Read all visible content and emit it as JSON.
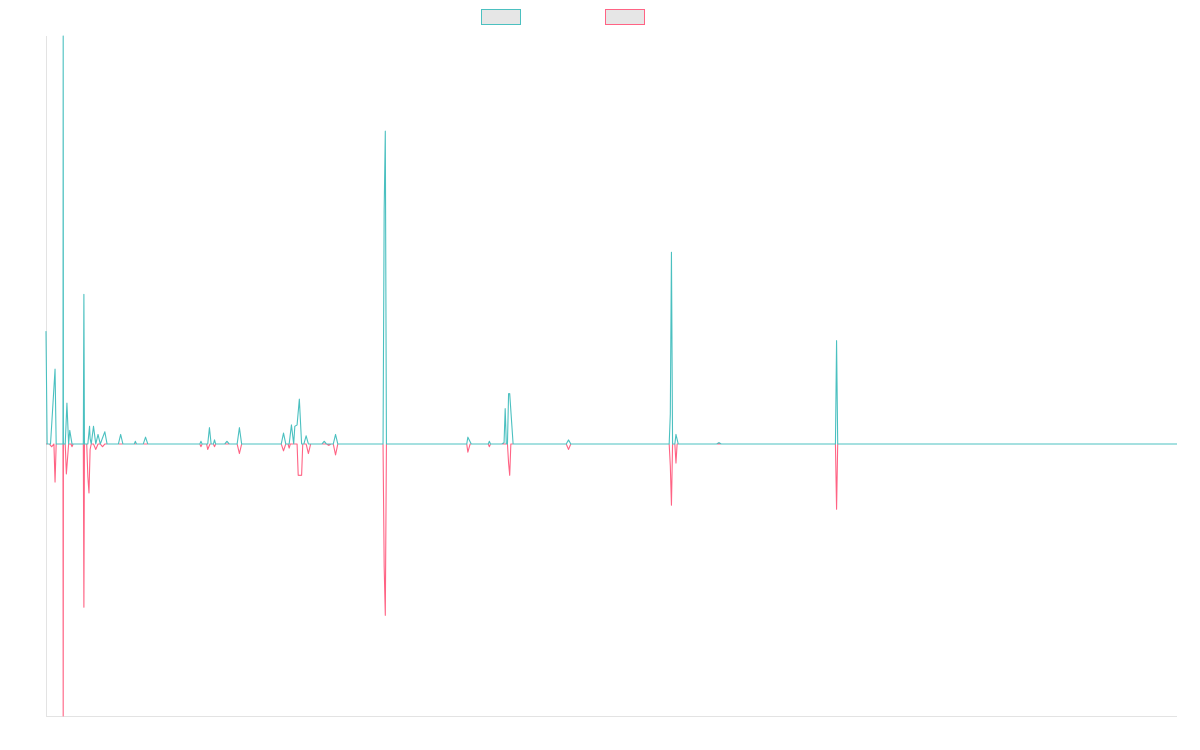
{
  "chart_data": {
    "type": "line",
    "title": "",
    "xlabel": "",
    "ylabel": "",
    "xlim": [
      0,
      1000
    ],
    "ylim": [
      -100,
      150
    ],
    "grid": false,
    "legend": "top-center",
    "series": [
      {
        "name": "",
        "color": "#4bc0c0",
        "points": [
          [
            0,
            41.5
          ],
          [
            1,
            0
          ],
          [
            4,
            0
          ],
          [
            8,
            27.5
          ],
          [
            9,
            0
          ],
          [
            15,
            0
          ],
          [
            15.2,
            150
          ],
          [
            15.4,
            0
          ],
          [
            17,
            0
          ],
          [
            18.5,
            15
          ],
          [
            20,
            0
          ],
          [
            21,
            5
          ],
          [
            23,
            0
          ],
          [
            33,
            0
          ],
          [
            33.5,
            55
          ],
          [
            34,
            0
          ],
          [
            37,
            0
          ],
          [
            38.5,
            6.5
          ],
          [
            39,
            2
          ],
          [
            40,
            0
          ],
          [
            42,
            6.5
          ],
          [
            44,
            0
          ],
          [
            46,
            3.5
          ],
          [
            48,
            0
          ],
          [
            52,
            4.5
          ],
          [
            54,
            0
          ],
          [
            64,
            0
          ],
          [
            66,
            3.5
          ],
          [
            68,
            0
          ],
          [
            78,
            0
          ],
          [
            79,
            1
          ],
          [
            80,
            0
          ],
          [
            86,
            0
          ],
          [
            88,
            2.5
          ],
          [
            90,
            0
          ],
          [
            136,
            0
          ],
          [
            137,
            1
          ],
          [
            138,
            0
          ],
          [
            143,
            0
          ],
          [
            144.5,
            6
          ],
          [
            146,
            0
          ],
          [
            148,
            0
          ],
          [
            149,
            1.5
          ],
          [
            150,
            0
          ],
          [
            158,
            0
          ],
          [
            160,
            1
          ],
          [
            162,
            0
          ],
          [
            169,
            0
          ],
          [
            171,
            6
          ],
          [
            173,
            0
          ],
          [
            208,
            0
          ],
          [
            210,
            4
          ],
          [
            212,
            0
          ],
          [
            215,
            0
          ],
          [
            217,
            7
          ],
          [
            219,
            0
          ],
          [
            220,
            6.5
          ],
          [
            222,
            7
          ],
          [
            224,
            16.5
          ],
          [
            226,
            0
          ],
          [
            228,
            0
          ],
          [
            230,
            3
          ],
          [
            232,
            0
          ],
          [
            244,
            0
          ],
          [
            246,
            1
          ],
          [
            248,
            0
          ],
          [
            254,
            0
          ],
          [
            256,
            3.5
          ],
          [
            258,
            0
          ],
          [
            298,
            0
          ],
          [
            299,
            86
          ],
          [
            300,
            115
          ],
          [
            301,
            0
          ],
          [
            372,
            0
          ],
          [
            373,
            2.5
          ],
          [
            376,
            0
          ],
          [
            391,
            0
          ],
          [
            392,
            1
          ],
          [
            393,
            0
          ],
          [
            403,
            0
          ],
          [
            405,
            0.5
          ],
          [
            406,
            13
          ],
          [
            407,
            0
          ],
          [
            408,
            0
          ],
          [
            409,
            18.5
          ],
          [
            410,
            18.5
          ],
          [
            413,
            0
          ],
          [
            460,
            0
          ],
          [
            462,
            1.5
          ],
          [
            464,
            0
          ],
          [
            551,
            0
          ],
          [
            552,
            11
          ],
          [
            553,
            70.5
          ],
          [
            554,
            0
          ],
          [
            556,
            0
          ],
          [
            557,
            3.5
          ],
          [
            559,
            0
          ],
          [
            593,
            0
          ],
          [
            595,
            0.5
          ],
          [
            597,
            0
          ],
          [
            698,
            0
          ],
          [
            699,
            38
          ],
          [
            700,
            0
          ],
          [
            1000,
            0
          ]
        ]
      },
      {
        "name": "",
        "color": "#ff6384",
        "points": [
          [
            0,
            0
          ],
          [
            3,
            0
          ],
          [
            5,
            -1
          ],
          [
            7,
            0
          ],
          [
            8,
            -14
          ],
          [
            9,
            0
          ],
          [
            15,
            0
          ],
          [
            15.2,
            -100
          ],
          [
            15.4,
            0
          ],
          [
            17,
            0
          ],
          [
            18,
            -11
          ],
          [
            20,
            0
          ],
          [
            22,
            0
          ],
          [
            23,
            -1
          ],
          [
            24,
            0
          ],
          [
            33,
            0
          ],
          [
            33.5,
            -60
          ],
          [
            34,
            0
          ],
          [
            36,
            0
          ],
          [
            37,
            -12
          ],
          [
            38,
            -18
          ],
          [
            39,
            -2
          ],
          [
            40,
            0
          ],
          [
            42,
            0
          ],
          [
            44,
            -2
          ],
          [
            46,
            0
          ],
          [
            48,
            0
          ],
          [
            50,
            -1
          ],
          [
            52,
            0
          ],
          [
            136,
            0
          ],
          [
            137,
            -1
          ],
          [
            138,
            0
          ],
          [
            142,
            0
          ],
          [
            143,
            -2
          ],
          [
            145,
            0
          ],
          [
            148,
            0
          ],
          [
            149,
            -1
          ],
          [
            150,
            0
          ],
          [
            169,
            0
          ],
          [
            171,
            -3.5
          ],
          [
            173,
            0
          ],
          [
            208,
            0
          ],
          [
            210,
            -2.5
          ],
          [
            212,
            0
          ],
          [
            214,
            0
          ],
          [
            215,
            -1.5
          ],
          [
            216,
            0
          ],
          [
            222,
            0
          ],
          [
            223,
            -11.5
          ],
          [
            226,
            -11.5
          ],
          [
            227,
            0
          ],
          [
            230,
            0
          ],
          [
            232,
            -3.5
          ],
          [
            234,
            0
          ],
          [
            248,
            0
          ],
          [
            250,
            -0.5
          ],
          [
            252,
            0
          ],
          [
            254,
            0
          ],
          [
            256,
            -4
          ],
          [
            258,
            0
          ],
          [
            298,
            0
          ],
          [
            299,
            -45
          ],
          [
            300,
            -63
          ],
          [
            301,
            0
          ],
          [
            372,
            0
          ],
          [
            373,
            -3
          ],
          [
            375,
            0
          ],
          [
            391,
            0
          ],
          [
            392,
            -1
          ],
          [
            393,
            0
          ],
          [
            408,
            0
          ],
          [
            409,
            -7
          ],
          [
            410,
            -11.5
          ],
          [
            411,
            0
          ],
          [
            460,
            0
          ],
          [
            462,
            -2
          ],
          [
            464,
            0
          ],
          [
            551,
            0
          ],
          [
            552,
            -8
          ],
          [
            553,
            -22.5
          ],
          [
            554,
            0
          ],
          [
            556,
            0
          ],
          [
            557,
            -7
          ],
          [
            558,
            0
          ],
          [
            698,
            0
          ],
          [
            699,
            -24
          ],
          [
            700,
            0
          ],
          [
            1000,
            0
          ]
        ]
      }
    ]
  }
}
